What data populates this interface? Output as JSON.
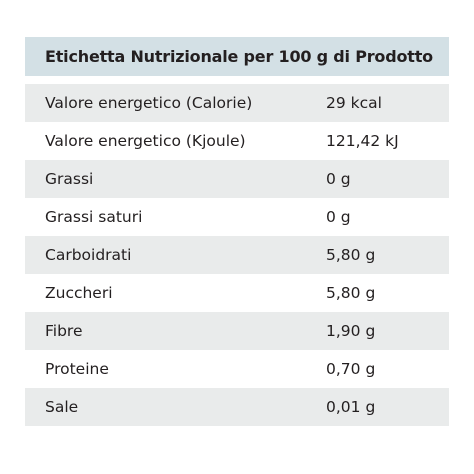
{
  "header": {
    "title": "Etichetta Nutrizionale per 100 g di Prodotto"
  },
  "table": {
    "rows": [
      [
        "Valore energetico (Calorie)",
        "29 kcal"
      ],
      [
        "Valore energetico (Kjoule)",
        "121,42 kJ"
      ],
      [
        "Grassi",
        "0 g"
      ],
      [
        "Grassi saturi",
        "0 g"
      ],
      [
        "Carboidrati",
        "5,80 g"
      ],
      [
        "Zuccheri",
        "5,80 g"
      ],
      [
        "Fibre",
        "1,90 g"
      ],
      [
        "Proteine",
        "0,70 g"
      ],
      [
        "Sale",
        "0,01 g"
      ]
    ]
  }
}
